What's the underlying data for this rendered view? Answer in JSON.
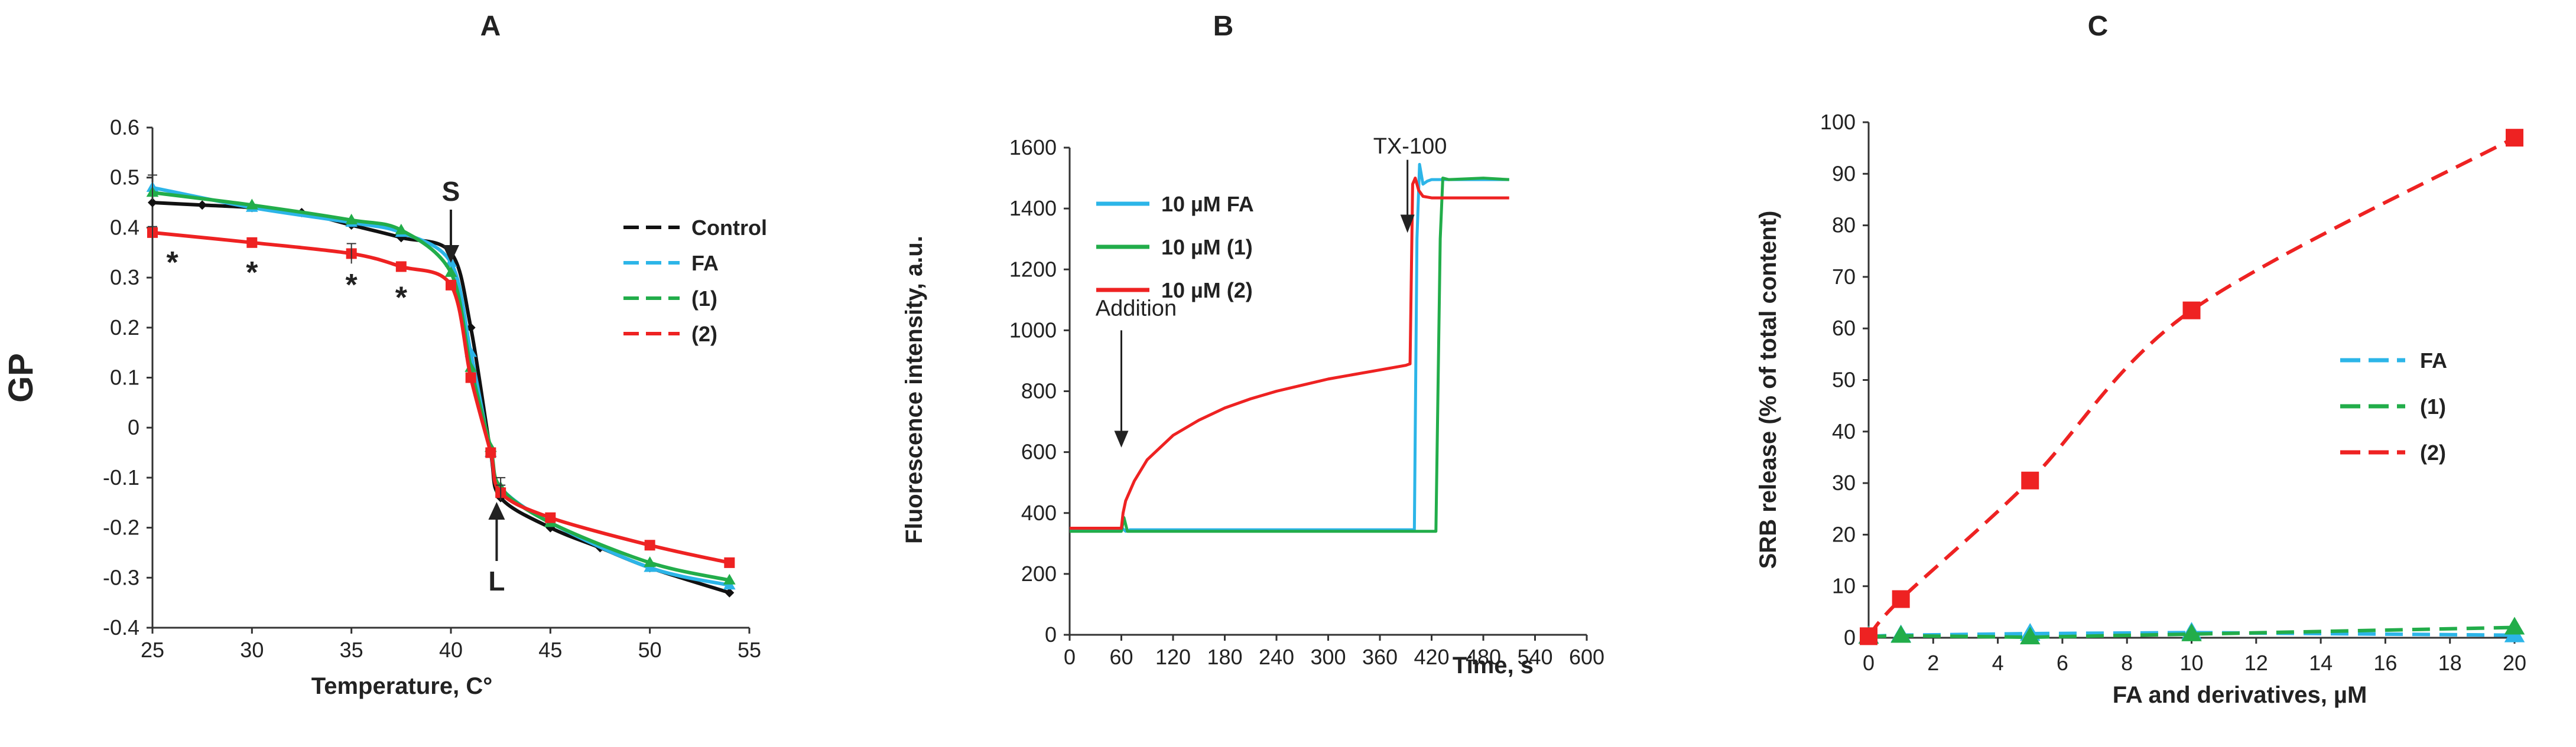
{
  "colors": {
    "control": "#111111",
    "fa": "#2cb5e8",
    "d1": "#22ad4a",
    "d2": "#ee2222",
    "axis": "#333333"
  },
  "chart_data": [
    {
      "panel": "A",
      "type": "line",
      "xlabel": "Temperature, C°",
      "ylabel": "GP",
      "xlim": [
        25,
        55
      ],
      "ylim": [
        -0.4,
        0.6
      ],
      "xticks": [
        25,
        30,
        35,
        40,
        45,
        50,
        55
      ],
      "yticks": [
        -0.4,
        -0.3,
        -0.2,
        -0.1,
        0,
        0.1,
        0.2,
        0.3,
        0.4,
        0.5,
        0.6
      ],
      "ytick_labels": [
        "-0.4",
        "-0.3",
        "-0.2",
        "-0.1",
        "0",
        "0.1",
        "0.2",
        "0.3",
        "0.4",
        "0.5",
        "0.6"
      ],
      "legend": [
        "Control",
        "FA",
        "(1)",
        "(2)"
      ],
      "annotations": {
        "s": "S",
        "l": "L",
        "star": "*"
      },
      "series": [
        {
          "name": "Control",
          "color_key": "control",
          "marker": "diamond",
          "x": [
            25,
            27.5,
            30,
            32.5,
            35,
            37.5,
            40,
            41,
            42,
            42.5,
            45,
            47.5,
            50,
            54
          ],
          "y": [
            0.45,
            0.445,
            0.44,
            0.43,
            0.405,
            0.38,
            0.35,
            0.2,
            -0.05,
            -0.14,
            -0.2,
            -0.24,
            -0.28,
            -0.33
          ]
        },
        {
          "name": "FA",
          "color_key": "fa",
          "marker": "triangle",
          "x": [
            25,
            30,
            35,
            37.5,
            40,
            41,
            42,
            42.5,
            45,
            50,
            54
          ],
          "y": [
            0.48,
            0.44,
            0.41,
            0.39,
            0.33,
            0.15,
            -0.05,
            -0.12,
            -0.19,
            -0.28,
            -0.315
          ]
        },
        {
          "name": "(1)",
          "color_key": "d1",
          "marker": "triangle",
          "x": [
            25,
            30,
            35,
            37.5,
            40,
            41,
            42,
            42.5,
            45,
            50,
            54
          ],
          "y": [
            0.47,
            0.445,
            0.415,
            0.395,
            0.31,
            0.12,
            -0.04,
            -0.12,
            -0.19,
            -0.27,
            -0.305
          ]
        },
        {
          "name": "(2)",
          "color_key": "d2",
          "marker": "square",
          "x": [
            25,
            30,
            35,
            37.5,
            40,
            41,
            42,
            42.5,
            45,
            50,
            54
          ],
          "y": [
            0.39,
            0.37,
            0.348,
            0.322,
            0.285,
            0.1,
            -0.05,
            -0.13,
            -0.18,
            -0.235,
            -0.27
          ]
        }
      ]
    },
    {
      "panel": "B",
      "type": "line",
      "xlabel": "Time, s",
      "ylabel": "Fluorescence intensity, a.u.",
      "xlim": [
        0,
        600
      ],
      "ylim": [
        0,
        1600
      ],
      "xticks": [
        0,
        60,
        120,
        180,
        240,
        300,
        360,
        420,
        480,
        540,
        600
      ],
      "yticks": [
        0,
        200,
        400,
        600,
        800,
        1000,
        1200,
        1400,
        1600
      ],
      "legend": [
        "10 µM FA",
        "10 µM (1)",
        "10 µM (2)"
      ],
      "annotations": {
        "addition": "Addition",
        "tx": "TX-100"
      },
      "series": [
        {
          "name": "10 µM FA",
          "color_key": "fa",
          "x": [
            0,
            60,
            61,
            65,
            70,
            120,
            200,
            300,
            400,
            403,
            406,
            410,
            415,
            420,
            440,
            510
          ],
          "y": [
            345,
            345,
            350,
            340,
            345,
            345,
            345,
            345,
            345,
            1300,
            1545,
            1480,
            1490,
            1495,
            1495,
            1495
          ]
        },
        {
          "name": "10 µM (1)",
          "color_key": "d1",
          "x": [
            0,
            60,
            63,
            67,
            72,
            120,
            200,
            300,
            400,
            420,
            425,
            430,
            433,
            440,
            480,
            510
          ],
          "y": [
            340,
            340,
            385,
            340,
            340,
            340,
            340,
            340,
            340,
            340,
            340,
            1300,
            1500,
            1495,
            1500,
            1495
          ]
        },
        {
          "name": "10 µM (2)",
          "color_key": "d2",
          "x": [
            0,
            58,
            60,
            62,
            65,
            75,
            90,
            120,
            150,
            180,
            210,
            240,
            270,
            300,
            330,
            360,
            390,
            395,
            398,
            401,
            405,
            410,
            420,
            450,
            510
          ],
          "y": [
            350,
            350,
            350,
            400,
            440,
            505,
            575,
            655,
            705,
            745,
            775,
            800,
            820,
            840,
            855,
            870,
            885,
            890,
            1480,
            1500,
            1460,
            1440,
            1435,
            1435,
            1435
          ]
        }
      ]
    },
    {
      "panel": "C",
      "type": "line",
      "xlabel": "FA and derivatives, µM",
      "ylabel": "SRB release (% of total content)",
      "xlim": [
        0,
        20
      ],
      "ylim": [
        0,
        100
      ],
      "xticks": [
        0,
        2,
        4,
        6,
        8,
        10,
        12,
        14,
        16,
        18,
        20
      ],
      "yticks": [
        0,
        10,
        20,
        30,
        40,
        50,
        60,
        70,
        80,
        90,
        100
      ],
      "legend": [
        "FA",
        "(1)",
        "(2)"
      ],
      "series": [
        {
          "name": "FA",
          "color_key": "fa",
          "marker": "triangle",
          "x": [
            0,
            1,
            5,
            10,
            20
          ],
          "y": [
            0.3,
            0.5,
            0.8,
            1.0,
            0.5
          ]
        },
        {
          "name": "(1)",
          "color_key": "d1",
          "marker": "triangle",
          "x": [
            0,
            1,
            5,
            10,
            20
          ],
          "y": [
            0.2,
            0.4,
            0.1,
            0.7,
            2.0
          ]
        },
        {
          "name": "(2)",
          "color_key": "d2",
          "marker": "square",
          "x": [
            0,
            1,
            5,
            10,
            20
          ],
          "y": [
            0.3,
            7.5,
            30.5,
            63.5,
            97.0
          ]
        }
      ]
    }
  ]
}
